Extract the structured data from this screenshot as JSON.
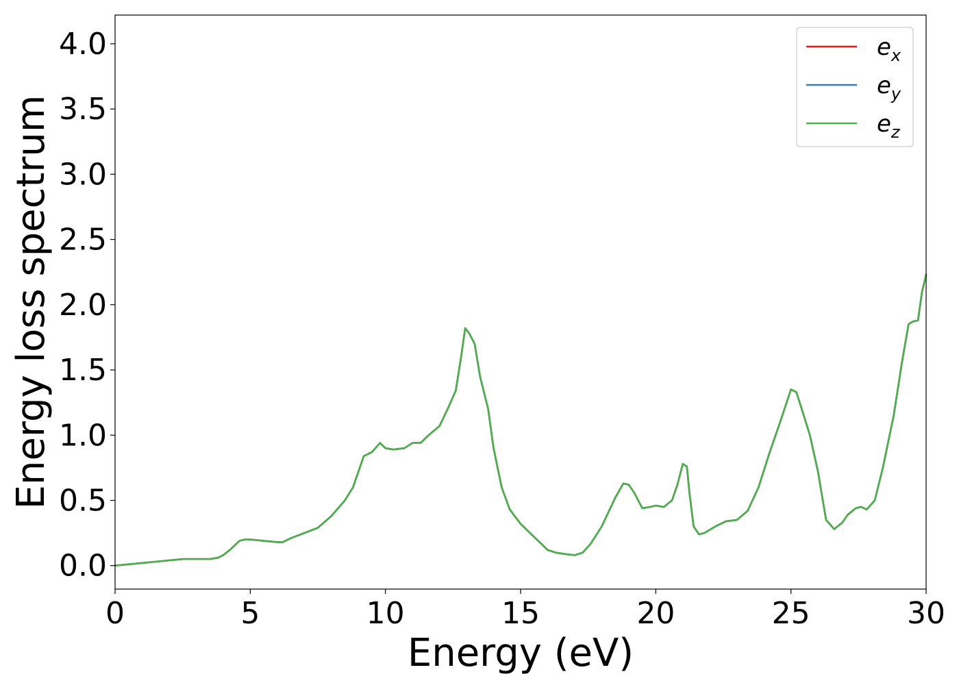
{
  "chart_data": {
    "type": "line",
    "xlabel": "Energy (eV)",
    "ylabel": "Energy loss spectrum",
    "xlim": [
      0,
      30
    ],
    "ylim": [
      -0.18,
      4.22
    ],
    "xticks": [
      0,
      5,
      10,
      15,
      20,
      25,
      30
    ],
    "xtick_labels": [
      "0",
      "5",
      "10",
      "15",
      "20",
      "25",
      "30"
    ],
    "yticks": [
      0.0,
      0.5,
      1.0,
      1.5,
      2.0,
      2.5,
      3.0,
      3.5,
      4.0
    ],
    "ytick_labels": [
      "0.0",
      "0.5",
      "1.0",
      "1.5",
      "2.0",
      "2.5",
      "3.0",
      "3.5",
      "4.0"
    ],
    "grid": false,
    "legend_position": "top-right",
    "series": [
      {
        "name": "e_x",
        "label_base": "e",
        "label_sub": "x",
        "color": "#e41a1c",
        "x": [
          0,
          0.5,
          1,
          1.5,
          2,
          2.5,
          3,
          3.5,
          3.8,
          4.0,
          4.3,
          4.6,
          4.8,
          5.0,
          5.5,
          6.0,
          6.2,
          6.5,
          7.0,
          7.5,
          8.0,
          8.5,
          8.8,
          9.0,
          9.2,
          9.5,
          9.8,
          10.0,
          10.3,
          10.7,
          11.0,
          11.3,
          11.6,
          12.0,
          12.3,
          12.6,
          12.8,
          12.95,
          13.1,
          13.3,
          13.5,
          13.8,
          14.0,
          14.3,
          14.6,
          15.0,
          15.5,
          16.0,
          16.3,
          16.6,
          17.0,
          17.3,
          17.6,
          18.0,
          18.5,
          18.8,
          19.0,
          19.2,
          19.5,
          19.8,
          20.0,
          20.3,
          20.6,
          20.8,
          21.0,
          21.15,
          21.25,
          21.4,
          21.6,
          21.8,
          22.2,
          22.6,
          23.0,
          23.4,
          23.8,
          24.2,
          24.6,
          25.0,
          25.2,
          25.4,
          25.7,
          26.0,
          26.3,
          26.6,
          26.9,
          27.1,
          27.4,
          27.6,
          27.8,
          28.1,
          28.4,
          28.8,
          29.1,
          29.35,
          29.5,
          29.7,
          29.85,
          30.0
        ],
        "y": [
          0.0,
          0.01,
          0.02,
          0.03,
          0.04,
          0.05,
          0.05,
          0.05,
          0.06,
          0.08,
          0.13,
          0.19,
          0.2,
          0.2,
          0.19,
          0.18,
          0.18,
          0.21,
          0.25,
          0.29,
          0.38,
          0.5,
          0.6,
          0.72,
          0.84,
          0.87,
          0.94,
          0.9,
          0.89,
          0.9,
          0.94,
          0.94,
          1.0,
          1.07,
          1.2,
          1.34,
          1.6,
          1.82,
          1.78,
          1.7,
          1.45,
          1.2,
          0.9,
          0.6,
          0.43,
          0.32,
          0.22,
          0.12,
          0.1,
          0.09,
          0.08,
          0.1,
          0.17,
          0.3,
          0.52,
          0.63,
          0.62,
          0.56,
          0.44,
          0.45,
          0.46,
          0.45,
          0.5,
          0.62,
          0.78,
          0.76,
          0.55,
          0.3,
          0.24,
          0.25,
          0.3,
          0.34,
          0.35,
          0.42,
          0.6,
          0.86,
          1.1,
          1.35,
          1.33,
          1.2,
          1.0,
          0.72,
          0.35,
          0.28,
          0.33,
          0.39,
          0.44,
          0.45,
          0.43,
          0.5,
          0.75,
          1.15,
          1.55,
          1.85,
          1.87,
          1.88,
          2.1,
          2.23
        ]
      },
      {
        "name": "e_y",
        "label_base": "e",
        "label_sub": "y",
        "color": "#377eb8",
        "x": [
          0,
          0.5,
          1,
          1.5,
          2,
          2.5,
          3,
          3.5,
          3.8,
          4.0,
          4.3,
          4.6,
          4.8,
          5.0,
          5.5,
          6.0,
          6.2,
          6.5,
          7.0,
          7.5,
          8.0,
          8.5,
          8.8,
          9.0,
          9.2,
          9.5,
          9.8,
          10.0,
          10.3,
          10.7,
          11.0,
          11.3,
          11.6,
          12.0,
          12.3,
          12.6,
          12.8,
          12.95,
          13.1,
          13.3,
          13.5,
          13.8,
          14.0,
          14.3,
          14.6,
          15.0,
          15.5,
          16.0,
          16.3,
          16.6,
          17.0,
          17.3,
          17.6,
          18.0,
          18.5,
          18.8,
          19.0,
          19.2,
          19.5,
          19.8,
          20.0,
          20.3,
          20.6,
          20.8,
          21.0,
          21.15,
          21.25,
          21.4,
          21.6,
          21.8,
          22.2,
          22.6,
          23.0,
          23.4,
          23.8,
          24.2,
          24.6,
          25.0,
          25.2,
          25.4,
          25.7,
          26.0,
          26.3,
          26.6,
          26.9,
          27.1,
          27.4,
          27.6,
          27.8,
          28.1,
          28.4,
          28.8,
          29.1,
          29.35,
          29.5,
          29.7,
          29.85,
          30.0
        ],
        "y": [
          0.0,
          0.01,
          0.02,
          0.03,
          0.04,
          0.05,
          0.05,
          0.05,
          0.06,
          0.08,
          0.13,
          0.19,
          0.2,
          0.2,
          0.19,
          0.18,
          0.18,
          0.21,
          0.25,
          0.29,
          0.38,
          0.5,
          0.6,
          0.72,
          0.84,
          0.87,
          0.94,
          0.9,
          0.89,
          0.9,
          0.94,
          0.94,
          1.0,
          1.07,
          1.2,
          1.34,
          1.6,
          1.82,
          1.78,
          1.7,
          1.45,
          1.2,
          0.9,
          0.6,
          0.43,
          0.32,
          0.22,
          0.12,
          0.1,
          0.09,
          0.08,
          0.1,
          0.17,
          0.3,
          0.52,
          0.63,
          0.62,
          0.56,
          0.44,
          0.45,
          0.46,
          0.45,
          0.5,
          0.62,
          0.78,
          0.76,
          0.55,
          0.3,
          0.24,
          0.25,
          0.3,
          0.34,
          0.35,
          0.42,
          0.6,
          0.86,
          1.1,
          1.35,
          1.33,
          1.2,
          1.0,
          0.72,
          0.35,
          0.28,
          0.33,
          0.39,
          0.44,
          0.45,
          0.43,
          0.5,
          0.75,
          1.15,
          1.55,
          1.85,
          1.87,
          1.88,
          2.1,
          2.23
        ]
      },
      {
        "name": "e_z",
        "label_base": "e",
        "label_sub": "z",
        "color": "#4daf4a",
        "x": [
          0,
          0.5,
          1,
          1.5,
          2,
          2.5,
          3,
          3.5,
          3.8,
          4.0,
          4.3,
          4.6,
          4.8,
          5.0,
          5.5,
          6.0,
          6.2,
          6.5,
          7.0,
          7.5,
          8.0,
          8.5,
          8.8,
          9.0,
          9.2,
          9.5,
          9.8,
          10.0,
          10.3,
          10.7,
          11.0,
          11.3,
          11.6,
          12.0,
          12.3,
          12.6,
          12.8,
          12.95,
          13.1,
          13.3,
          13.5,
          13.8,
          14.0,
          14.3,
          14.6,
          15.0,
          15.5,
          16.0,
          16.3,
          16.6,
          17.0,
          17.3,
          17.6,
          18.0,
          18.5,
          18.8,
          19.0,
          19.2,
          19.5,
          19.8,
          20.0,
          20.3,
          20.6,
          20.8,
          21.0,
          21.15,
          21.25,
          21.4,
          21.6,
          21.8,
          22.2,
          22.6,
          23.0,
          23.4,
          23.8,
          24.2,
          24.6,
          25.0,
          25.2,
          25.4,
          25.7,
          26.0,
          26.3,
          26.6,
          26.9,
          27.1,
          27.4,
          27.6,
          27.8,
          28.1,
          28.4,
          28.8,
          29.1,
          29.35,
          29.5,
          29.7,
          29.85,
          30.0
        ],
        "y": [
          0.0,
          0.01,
          0.02,
          0.03,
          0.04,
          0.05,
          0.05,
          0.05,
          0.06,
          0.08,
          0.13,
          0.19,
          0.2,
          0.2,
          0.19,
          0.18,
          0.18,
          0.21,
          0.25,
          0.29,
          0.38,
          0.5,
          0.6,
          0.72,
          0.84,
          0.87,
          0.94,
          0.9,
          0.89,
          0.9,
          0.94,
          0.94,
          1.0,
          1.07,
          1.2,
          1.34,
          1.6,
          1.82,
          1.78,
          1.7,
          1.45,
          1.2,
          0.9,
          0.6,
          0.43,
          0.32,
          0.22,
          0.12,
          0.1,
          0.09,
          0.08,
          0.1,
          0.17,
          0.3,
          0.52,
          0.63,
          0.62,
          0.56,
          0.44,
          0.45,
          0.46,
          0.45,
          0.5,
          0.62,
          0.78,
          0.76,
          0.55,
          0.3,
          0.24,
          0.25,
          0.3,
          0.34,
          0.35,
          0.42,
          0.6,
          0.86,
          1.1,
          1.35,
          1.33,
          1.2,
          1.0,
          0.72,
          0.35,
          0.28,
          0.33,
          0.39,
          0.44,
          0.45,
          0.43,
          0.5,
          0.75,
          1.15,
          1.55,
          1.85,
          1.87,
          1.88,
          2.1,
          2.23
        ]
      }
    ]
  }
}
